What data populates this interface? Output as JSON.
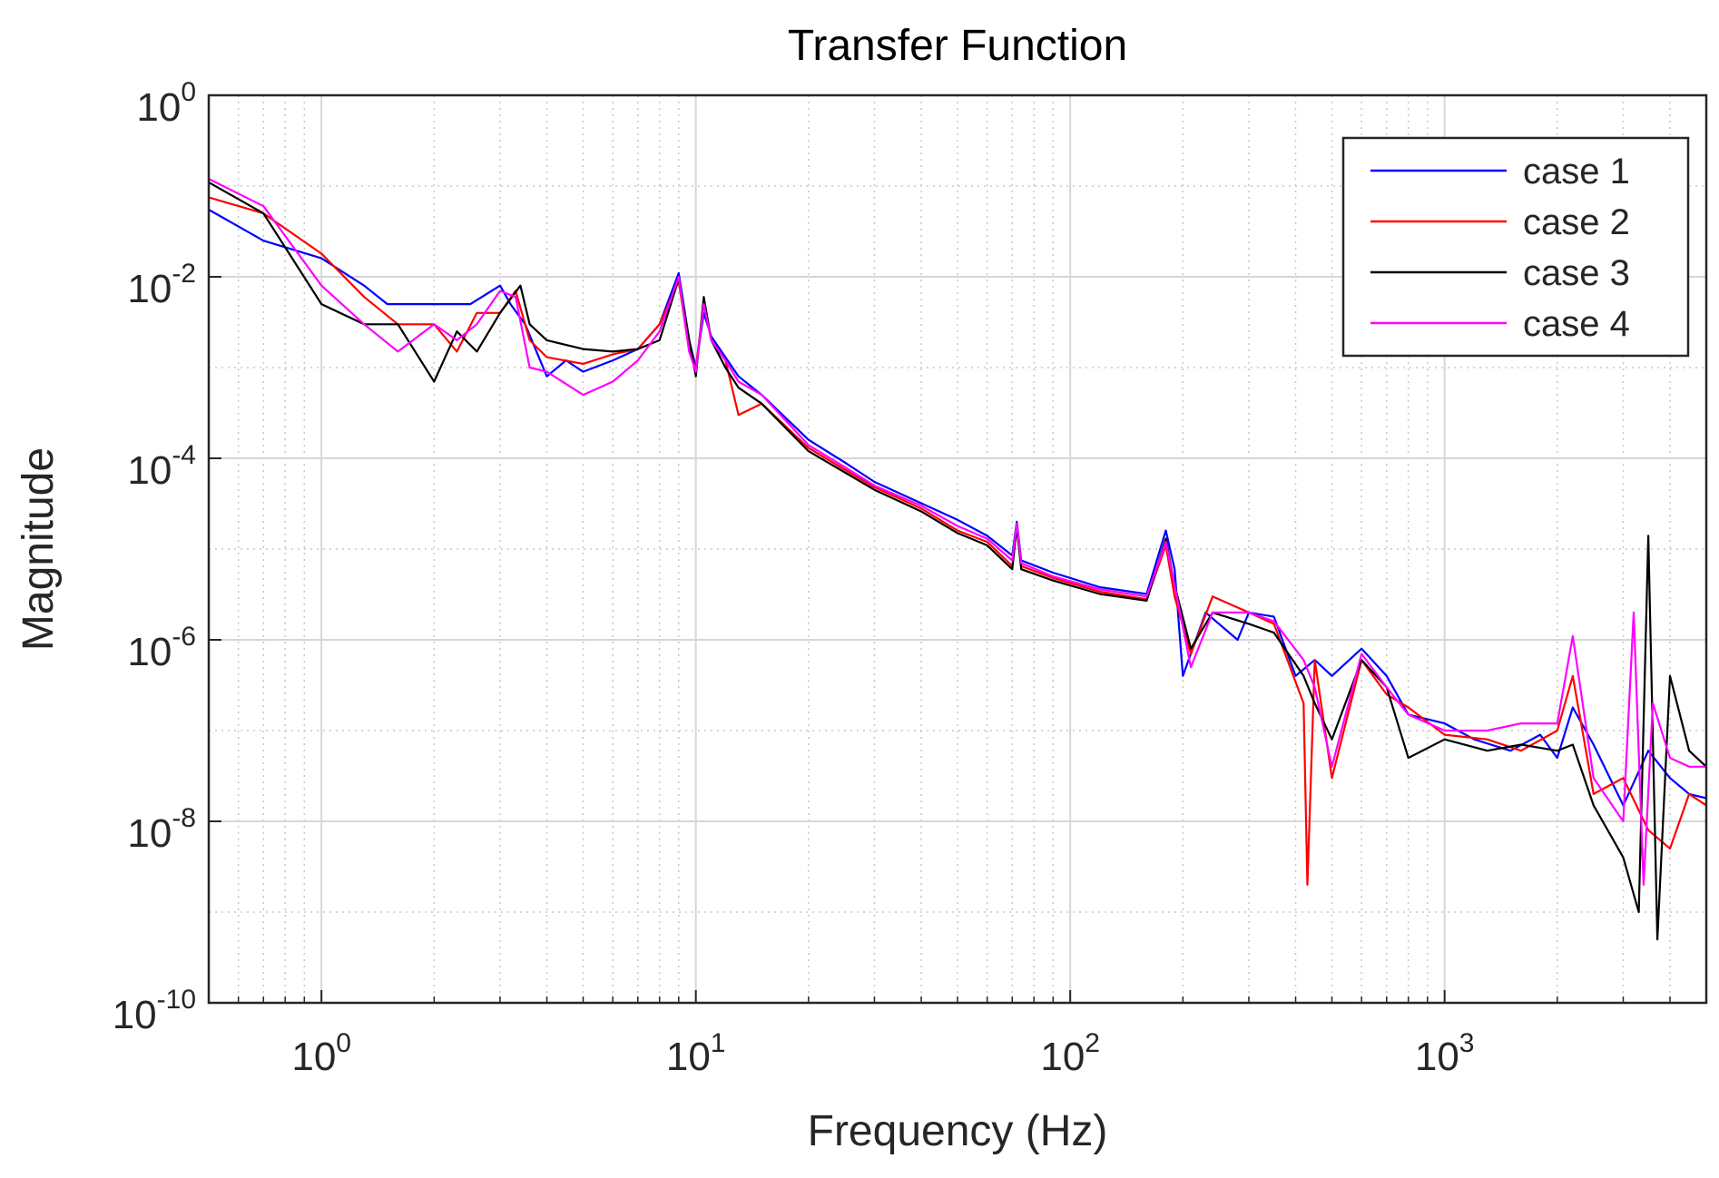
{
  "chart_data": {
    "type": "line",
    "title": "Transfer Function",
    "xlabel": "Frequency (Hz)",
    "ylabel": "Magnitude",
    "x_scale": "log",
    "y_scale": "log",
    "xlim": [
      0.5,
      5000
    ],
    "ylim": [
      1e-10,
      1
    ],
    "grid": true,
    "minor_grid": true,
    "legend_position": "top-right",
    "x_ticks": [
      {
        "value": 1,
        "base": "10",
        "exp": "0"
      },
      {
        "value": 10,
        "base": "10",
        "exp": "1"
      },
      {
        "value": 100,
        "base": "10",
        "exp": "2"
      },
      {
        "value": 1000,
        "base": "10",
        "exp": "3"
      }
    ],
    "y_ticks": [
      {
        "value": 1,
        "base": "10",
        "exp": "0"
      },
      {
        "value": 0.01,
        "base": "10",
        "exp": "-2"
      },
      {
        "value": 0.0001,
        "base": "10",
        "exp": "-4"
      },
      {
        "value": 1e-06,
        "base": "10",
        "exp": "-6"
      },
      {
        "value": 1e-08,
        "base": "10",
        "exp": "-8"
      },
      {
        "value": 1e-10,
        "base": "10",
        "exp": "-10"
      }
    ],
    "series": [
      {
        "name": "case 1",
        "color": "#0000ff",
        "points": [
          [
            0.5,
            0.055
          ],
          [
            0.7,
            0.025
          ],
          [
            1.0,
            0.016
          ],
          [
            1.3,
            0.008
          ],
          [
            1.5,
            0.005
          ],
          [
            2.0,
            0.005
          ],
          [
            2.5,
            0.005
          ],
          [
            3.0,
            0.008
          ],
          [
            3.2,
            0.005
          ],
          [
            3.5,
            0.003
          ],
          [
            4.0,
            0.0008
          ],
          [
            4.5,
            0.0012
          ],
          [
            5.0,
            0.0009
          ],
          [
            6.0,
            0.0012
          ],
          [
            7.0,
            0.0016
          ],
          [
            8.0,
            0.003
          ],
          [
            9.0,
            0.011
          ],
          [
            9.6,
            0.002
          ],
          [
            10.0,
            0.001
          ],
          [
            10.5,
            0.004
          ],
          [
            11.0,
            0.0022
          ],
          [
            12.0,
            0.0013
          ],
          [
            13.0,
            0.0008
          ],
          [
            15.0,
            0.0005
          ],
          [
            20.0,
            0.00016
          ],
          [
            25.0,
            9e-05
          ],
          [
            30.0,
            5.5e-05
          ],
          [
            40.0,
            3.2e-05
          ],
          [
            50.0,
            2.1e-05
          ],
          [
            60.0,
            1.4e-05
          ],
          [
            70.0,
            8.5e-06
          ],
          [
            72.0,
            2e-05
          ],
          [
            74.0,
            7.5e-06
          ],
          [
            90.0,
            5.5e-06
          ],
          [
            120.0,
            3.8e-06
          ],
          [
            160.0,
            3.2e-06
          ],
          [
            180.0,
            1.6e-05
          ],
          [
            190.0,
            6e-06
          ],
          [
            200.0,
            4e-07
          ],
          [
            230.0,
            2e-06
          ],
          [
            280.0,
            1e-06
          ],
          [
            300.0,
            2e-06
          ],
          [
            350.0,
            1.8e-06
          ],
          [
            400.0,
            4e-07
          ],
          [
            450.0,
            6e-07
          ],
          [
            500.0,
            4e-07
          ],
          [
            600.0,
            8e-07
          ],
          [
            700.0,
            4e-07
          ],
          [
            800.0,
            1.5e-07
          ],
          [
            1000.0,
            1.2e-07
          ],
          [
            1200.0,
            8e-08
          ],
          [
            1500.0,
            6e-08
          ],
          [
            1800.0,
            9e-08
          ],
          [
            2000.0,
            5e-08
          ],
          [
            2200.0,
            1.8e-07
          ],
          [
            2500.0,
            7e-08
          ],
          [
            3000.0,
            1.5e-08
          ],
          [
            3500.0,
            6e-08
          ],
          [
            4000.0,
            3e-08
          ],
          [
            4500.0,
            2e-08
          ],
          [
            5000.0,
            1.8e-08
          ]
        ]
      },
      {
        "name": "case 2",
        "color": "#ff0000",
        "points": [
          [
            0.5,
            0.075
          ],
          [
            0.7,
            0.05
          ],
          [
            1.0,
            0.018
          ],
          [
            1.3,
            0.006
          ],
          [
            1.6,
            0.003
          ],
          [
            2.0,
            0.003
          ],
          [
            2.3,
            0.0015
          ],
          [
            2.6,
            0.004
          ],
          [
            3.0,
            0.004
          ],
          [
            3.3,
            0.007
          ],
          [
            3.6,
            0.002
          ],
          [
            4.0,
            0.0013
          ],
          [
            5.0,
            0.0011
          ],
          [
            6.0,
            0.0014
          ],
          [
            7.0,
            0.0016
          ],
          [
            8.0,
            0.003
          ],
          [
            9.0,
            0.009
          ],
          [
            9.6,
            0.0015
          ],
          [
            10.0,
            0.001
          ],
          [
            10.5,
            0.005
          ],
          [
            11.0,
            0.002
          ],
          [
            12.0,
            0.0012
          ],
          [
            13.0,
            0.0003
          ],
          [
            15.0,
            0.0004
          ],
          [
            20.0,
            0.00013
          ],
          [
            25.0,
            7.5e-05
          ],
          [
            30.0,
            4.8e-05
          ],
          [
            40.0,
            2.8e-05
          ],
          [
            50.0,
            1.6e-05
          ],
          [
            60.0,
            1.2e-05
          ],
          [
            70.0,
            6.5e-06
          ],
          [
            72.0,
            1.7e-05
          ],
          [
            74.0,
            6.5e-06
          ],
          [
            90.0,
            4.8e-06
          ],
          [
            120.0,
            3.4e-06
          ],
          [
            160.0,
            2.8e-06
          ],
          [
            180.0,
            1.1e-05
          ],
          [
            190.0,
            3e-06
          ],
          [
            210.0,
            7e-07
          ],
          [
            240.0,
            3e-06
          ],
          [
            300.0,
            2e-06
          ],
          [
            350.0,
            1.5e-06
          ],
          [
            420.0,
            2e-07
          ],
          [
            430.0,
            2e-09
          ],
          [
            450.0,
            6e-07
          ],
          [
            500.0,
            3e-08
          ],
          [
            600.0,
            6e-07
          ],
          [
            700.0,
            2.5e-07
          ],
          [
            800.0,
            1.8e-07
          ],
          [
            1000.0,
            9e-08
          ],
          [
            1300.0,
            8e-08
          ],
          [
            1600.0,
            6e-08
          ],
          [
            2000.0,
            1e-07
          ],
          [
            2200.0,
            4e-07
          ],
          [
            2500.0,
            2e-08
          ],
          [
            3000.0,
            3e-08
          ],
          [
            3500.0,
            8e-09
          ],
          [
            4000.0,
            5e-09
          ],
          [
            4500.0,
            2e-08
          ],
          [
            5000.0,
            1.5e-08
          ]
        ]
      },
      {
        "name": "case 3",
        "color": "#000000",
        "points": [
          [
            0.5,
            0.11
          ],
          [
            0.7,
            0.05
          ],
          [
            1.0,
            0.005
          ],
          [
            1.3,
            0.003
          ],
          [
            1.6,
            0.003
          ],
          [
            2.0,
            0.0007
          ],
          [
            2.3,
            0.0025
          ],
          [
            2.6,
            0.0015
          ],
          [
            3.0,
            0.004
          ],
          [
            3.4,
            0.008
          ],
          [
            3.6,
            0.003
          ],
          [
            4.0,
            0.002
          ],
          [
            5.0,
            0.0016
          ],
          [
            6.0,
            0.0015
          ],
          [
            7.0,
            0.0016
          ],
          [
            8.0,
            0.002
          ],
          [
            9.0,
            0.0095
          ],
          [
            9.6,
            0.002
          ],
          [
            10.0,
            0.0008
          ],
          [
            10.5,
            0.006
          ],
          [
            11.0,
            0.002
          ],
          [
            12.0,
            0.001
          ],
          [
            13.0,
            0.0006
          ],
          [
            15.0,
            0.0004
          ],
          [
            20.0,
            0.00012
          ],
          [
            25.0,
            7e-05
          ],
          [
            30.0,
            4.5e-05
          ],
          [
            40.0,
            2.6e-05
          ],
          [
            50.0,
            1.5e-05
          ],
          [
            60.0,
            1.1e-05
          ],
          [
            70.0,
            6e-06
          ],
          [
            72.0,
            1.8e-05
          ],
          [
            74.0,
            6e-06
          ],
          [
            90.0,
            4.5e-06
          ],
          [
            120.0,
            3.2e-06
          ],
          [
            160.0,
            2.7e-06
          ],
          [
            180.0,
            1.3e-05
          ],
          [
            190.0,
            4e-06
          ],
          [
            210.0,
            8e-07
          ],
          [
            240.0,
            2e-06
          ],
          [
            300.0,
            1.5e-06
          ],
          [
            350.0,
            1.2e-06
          ],
          [
            420.0,
            4e-07
          ],
          [
            450.0,
            2e-07
          ],
          [
            500.0,
            8e-08
          ],
          [
            600.0,
            6e-07
          ],
          [
            700.0,
            3e-07
          ],
          [
            800.0,
            5e-08
          ],
          [
            1000.0,
            8e-08
          ],
          [
            1300.0,
            6e-08
          ],
          [
            1600.0,
            7e-08
          ],
          [
            2000.0,
            6e-08
          ],
          [
            2200.0,
            7e-08
          ],
          [
            2500.0,
            1.5e-08
          ],
          [
            3000.0,
            4e-09
          ],
          [
            3300.0,
            1e-09
          ],
          [
            3500.0,
            1.4e-05
          ],
          [
            3700.0,
            5e-10
          ],
          [
            4000.0,
            4e-07
          ],
          [
            4500.0,
            6e-08
          ],
          [
            5000.0,
            4e-08
          ]
        ]
      },
      {
        "name": "case 4",
        "color": "#ff00ff",
        "points": [
          [
            0.5,
            0.12
          ],
          [
            0.7,
            0.06
          ],
          [
            1.0,
            0.008
          ],
          [
            1.3,
            0.003
          ],
          [
            1.6,
            0.0015
          ],
          [
            2.0,
            0.003
          ],
          [
            2.3,
            0.002
          ],
          [
            2.6,
            0.003
          ],
          [
            3.0,
            0.007
          ],
          [
            3.3,
            0.006
          ],
          [
            3.6,
            0.001
          ],
          [
            4.0,
            0.0009
          ],
          [
            5.0,
            0.0005
          ],
          [
            6.0,
            0.0007
          ],
          [
            7.0,
            0.0012
          ],
          [
            8.0,
            0.0025
          ],
          [
            9.0,
            0.01
          ],
          [
            9.6,
            0.0015
          ],
          [
            10.0,
            0.0009
          ],
          [
            10.5,
            0.005
          ],
          [
            11.0,
            0.002
          ],
          [
            12.0,
            0.0012
          ],
          [
            13.0,
            0.0007
          ],
          [
            15.0,
            0.0005
          ],
          [
            20.0,
            0.00014
          ],
          [
            25.0,
            8e-05
          ],
          [
            30.0,
            5e-05
          ],
          [
            40.0,
            3e-05
          ],
          [
            50.0,
            1.8e-05
          ],
          [
            60.0,
            1.3e-05
          ],
          [
            70.0,
            7.5e-06
          ],
          [
            72.0,
            1.9e-05
          ],
          [
            74.0,
            7e-06
          ],
          [
            90.0,
            5e-06
          ],
          [
            120.0,
            3.6e-06
          ],
          [
            160.0,
            3e-06
          ],
          [
            180.0,
            1.2e-05
          ],
          [
            190.0,
            4e-06
          ],
          [
            210.0,
            5e-07
          ],
          [
            240.0,
            2e-06
          ],
          [
            300.0,
            2e-06
          ],
          [
            350.0,
            1.6e-06
          ],
          [
            420.0,
            6e-07
          ],
          [
            450.0,
            3e-07
          ],
          [
            500.0,
            4e-08
          ],
          [
            600.0,
            7e-07
          ],
          [
            700.0,
            3e-07
          ],
          [
            800.0,
            1.5e-07
          ],
          [
            1000.0,
            1e-07
          ],
          [
            1300.0,
            1e-07
          ],
          [
            1600.0,
            1.2e-07
          ],
          [
            2000.0,
            1.2e-07
          ],
          [
            2200.0,
            1.1e-06
          ],
          [
            2500.0,
            3e-08
          ],
          [
            3000.0,
            1e-08
          ],
          [
            3200.0,
            2e-06
          ],
          [
            3400.0,
            2e-09
          ],
          [
            3600.0,
            2e-07
          ],
          [
            4000.0,
            5e-08
          ],
          [
            4500.0,
            4e-08
          ],
          [
            5000.0,
            4e-08
          ]
        ]
      }
    ]
  }
}
